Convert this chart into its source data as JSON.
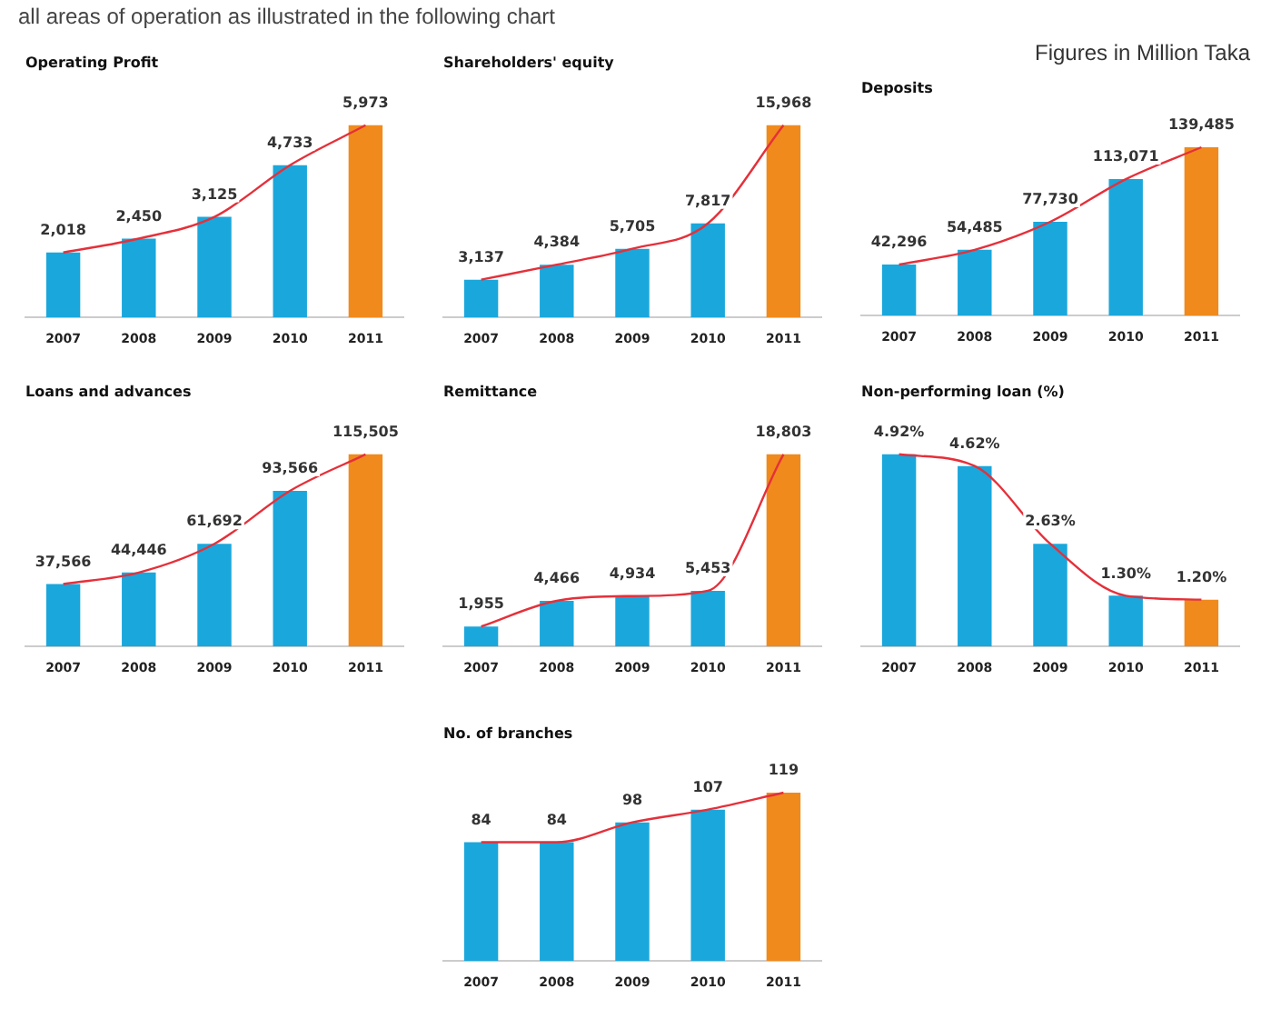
{
  "chart_data": [
    {
      "type": "bar",
      "title": "Operating Profit",
      "annotations": [
        "all areas of operation as illustrated in the following chart",
        "Figures in Million Taka"
      ],
      "categories": [
        "2007",
        "2008",
        "2009",
        "2010",
        "2011"
      ],
      "legend": false,
      "grid": false,
      "series": [
        {
          "colors": [
            "#1aa7dc",
            "#1aa7dc",
            "#1aa7dc",
            "#1aa7dc",
            "#f08a1c"
          ],
          "values": [
            2018,
            2450,
            3125,
            4733,
            5973
          ],
          "value_labels": [
            "2,018",
            "2,450",
            "3,125",
            "4,733",
            "5,973"
          ]
        },
        {
          "type": "line",
          "color": "#e5303a",
          "values": [
            2018,
            2450,
            3125,
            4733,
            5973
          ]
        }
      ]
    },
    {
      "type": "bar",
      "title": "Shareholders' equity",
      "categories": [
        "2007",
        "2008",
        "2009",
        "2010",
        "2011"
      ],
      "legend": false,
      "grid": false,
      "series": [
        {
          "colors": [
            "#1aa7dc",
            "#1aa7dc",
            "#1aa7dc",
            "#1aa7dc",
            "#f08a1c"
          ],
          "values": [
            3137,
            4384,
            5705,
            7817,
            15968
          ],
          "value_labels": [
            "3,137",
            "4,384",
            "5,705",
            "7,817",
            "15,968"
          ]
        },
        {
          "type": "line",
          "color": "#e5303a",
          "values": [
            3137,
            4384,
            5705,
            7817,
            15968
          ]
        }
      ]
    },
    {
      "type": "bar",
      "title": "Deposits",
      "categories": [
        "2007",
        "2008",
        "2009",
        "2010",
        "2011"
      ],
      "legend": false,
      "grid": false,
      "series": [
        {
          "colors": [
            "#1aa7dc",
            "#1aa7dc",
            "#1aa7dc",
            "#1aa7dc",
            "#f08a1c"
          ],
          "values": [
            42296,
            54485,
            77730,
            113071,
            139485
          ],
          "value_labels": [
            "42,296",
            "54,485",
            "77,730",
            "113,071",
            "139,485"
          ]
        },
        {
          "type": "line",
          "color": "#e5303a",
          "values": [
            42296,
            54485,
            77730,
            113071,
            139485
          ]
        }
      ]
    },
    {
      "type": "bar",
      "title": "Loans and advances",
      "categories": [
        "2007",
        "2008",
        "2009",
        "2010",
        "2011"
      ],
      "legend": false,
      "grid": false,
      "series": [
        {
          "colors": [
            "#1aa7dc",
            "#1aa7dc",
            "#1aa7dc",
            "#1aa7dc",
            "#f08a1c"
          ],
          "values": [
            37566,
            44446,
            61692,
            93566,
            115505
          ],
          "value_labels": [
            "37,566",
            "44,446",
            "61,692",
            "93,566",
            "115,505"
          ]
        },
        {
          "type": "line",
          "color": "#e5303a",
          "values": [
            37566,
            44446,
            61692,
            93566,
            115505
          ]
        }
      ]
    },
    {
      "type": "bar",
      "title": "Remittance",
      "categories": [
        "2007",
        "2008",
        "2009",
        "2010",
        "2011"
      ],
      "legend": false,
      "grid": false,
      "series": [
        {
          "colors": [
            "#1aa7dc",
            "#1aa7dc",
            "#1aa7dc",
            "#1aa7dc",
            "#f08a1c"
          ],
          "values": [
            1955,
            4466,
            4934,
            5453,
            18803
          ],
          "value_labels": [
            "1,955",
            "4,466",
            "4,934",
            "5,453",
            "18,803"
          ]
        },
        {
          "type": "line",
          "color": "#e5303a",
          "values": [
            1955,
            4466,
            4934,
            5453,
            18803
          ]
        }
      ]
    },
    {
      "type": "bar",
      "title": "Non-performing loan (%)",
      "categories": [
        "2007",
        "2008",
        "2009",
        "2010",
        "2011"
      ],
      "legend": false,
      "grid": false,
      "series": [
        {
          "colors": [
            "#1aa7dc",
            "#1aa7dc",
            "#1aa7dc",
            "#1aa7dc",
            "#f08a1c"
          ],
          "values": [
            4.92,
            4.62,
            2.63,
            1.3,
            1.2
          ],
          "value_labels": [
            "4.92%",
            "4.62%",
            "2.63%",
            "1.30%",
            "1.20%"
          ]
        },
        {
          "type": "line",
          "color": "#e5303a",
          "values": [
            4.92,
            4.62,
            2.63,
            1.3,
            1.2
          ]
        }
      ]
    },
    {
      "type": "bar",
      "title": "No. of branches",
      "categories": [
        "2007",
        "2008",
        "2009",
        "2010",
        "2011"
      ],
      "legend": false,
      "grid": false,
      "series": [
        {
          "colors": [
            "#1aa7dc",
            "#1aa7dc",
            "#1aa7dc",
            "#1aa7dc",
            "#f08a1c"
          ],
          "values": [
            84,
            84,
            98,
            107,
            119
          ],
          "value_labels": [
            "84",
            "84",
            "98",
            "107",
            "119"
          ]
        },
        {
          "type": "line",
          "color": "#e5303a",
          "values": [
            84,
            84,
            98,
            107,
            119
          ]
        }
      ]
    }
  ]
}
